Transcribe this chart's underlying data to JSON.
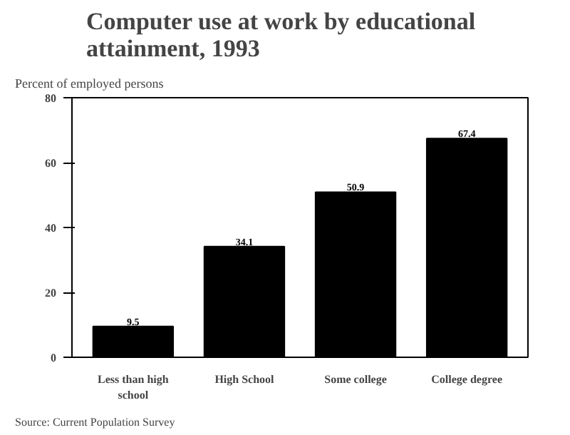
{
  "chart_data": {
    "type": "bar",
    "title": "Computer use at work by educational attainment, 1993",
    "ylabel": "Percent of employed persons",
    "categories": [
      "Less than high school",
      "High School",
      "Some college",
      "College degree"
    ],
    "values": [
      9.5,
      34.1,
      50.9,
      67.4
    ],
    "color": "#000000",
    "ylim": [
      0,
      80
    ],
    "yticks": [
      0,
      20,
      40,
      60,
      80
    ],
    "grid": false,
    "data_labels": true,
    "annotations": [
      "Source:  Current Population Survey"
    ]
  }
}
